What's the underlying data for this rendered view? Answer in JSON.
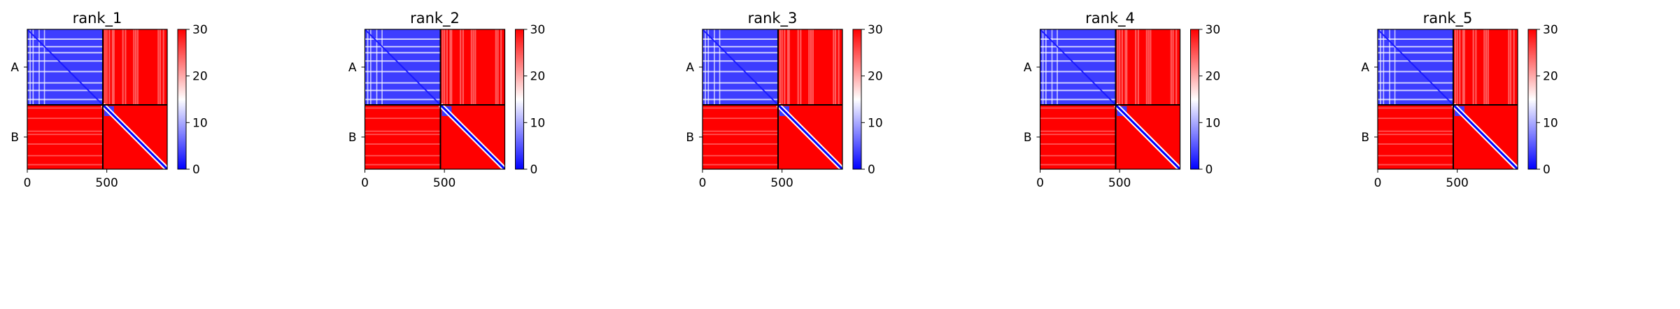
{
  "colormap": {
    "low": "#0000ff",
    "mid": "#ffffff",
    "high": "#ff0000"
  },
  "chart_data": [
    {
      "type": "heatmap",
      "title": "rank_1",
      "x_ticks": [
        "0",
        "500"
      ],
      "chains": [
        "A",
        "B"
      ],
      "chain_boundary": 475,
      "length": 880,
      "clim": [
        0,
        30
      ],
      "colorbar_ticks": [
        "0",
        "10",
        "20",
        "30"
      ]
    },
    {
      "type": "heatmap",
      "title": "rank_2",
      "x_ticks": [
        "0",
        "500"
      ],
      "chains": [
        "A",
        "B"
      ],
      "chain_boundary": 475,
      "length": 880,
      "clim": [
        0,
        30
      ],
      "colorbar_ticks": [
        "0",
        "10",
        "20",
        "30"
      ]
    },
    {
      "type": "heatmap",
      "title": "rank_3",
      "x_ticks": [
        "0",
        "500"
      ],
      "chains": [
        "A",
        "B"
      ],
      "chain_boundary": 475,
      "length": 880,
      "clim": [
        0,
        30
      ],
      "colorbar_ticks": [
        "0",
        "10",
        "20",
        "30"
      ]
    },
    {
      "type": "heatmap",
      "title": "rank_4",
      "x_ticks": [
        "0",
        "500"
      ],
      "chains": [
        "A",
        "B"
      ],
      "chain_boundary": 475,
      "length": 880,
      "clim": [
        0,
        30
      ],
      "colorbar_ticks": [
        "0",
        "10",
        "20",
        "30"
      ]
    },
    {
      "type": "heatmap",
      "title": "rank_5",
      "x_ticks": [
        "0",
        "500"
      ],
      "chains": [
        "A",
        "B"
      ],
      "chain_boundary": 475,
      "length": 880,
      "clim": [
        0,
        30
      ],
      "colorbar_ticks": [
        "0",
        "10",
        "20",
        "30"
      ]
    }
  ]
}
